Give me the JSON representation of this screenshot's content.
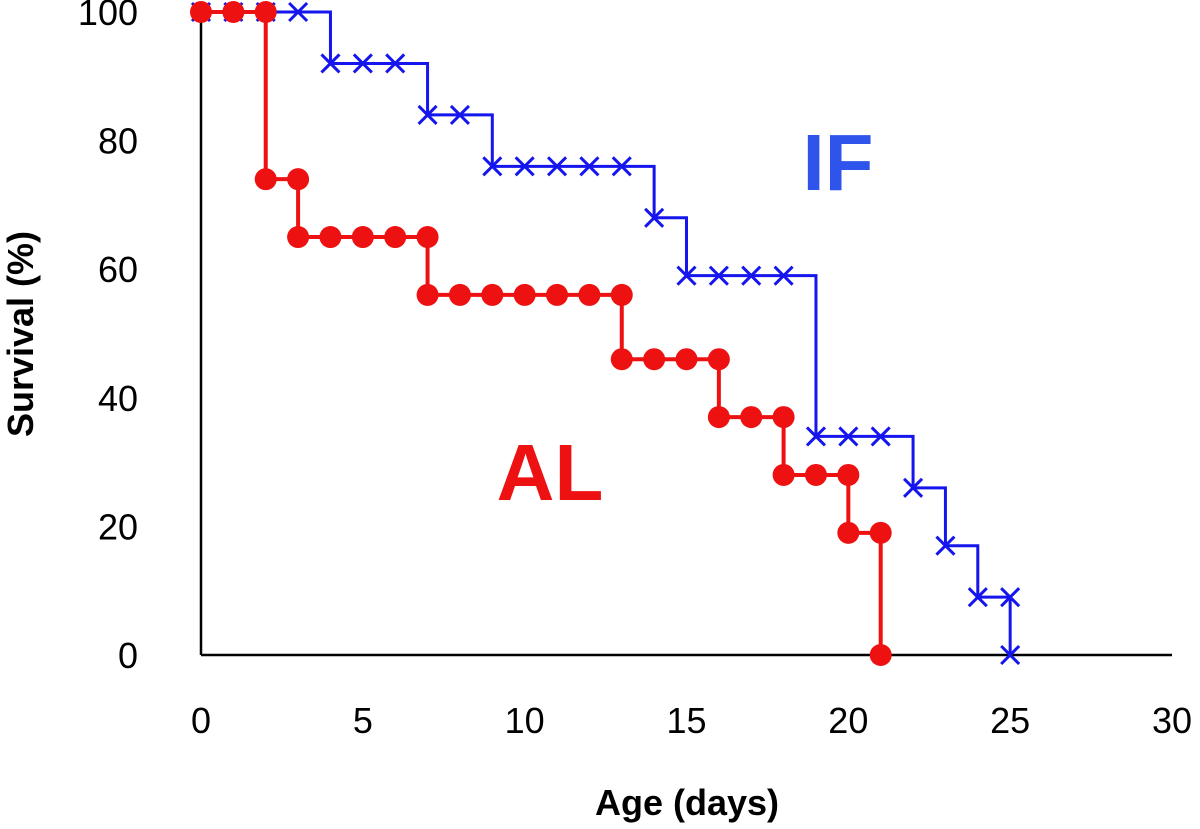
{
  "chart_data": {
    "type": "line",
    "subtype": "step-survival",
    "title": "",
    "xlabel": "Age (days)",
    "ylabel": "Survival (%)",
    "xlim": [
      0,
      30
    ],
    "ylim": [
      0,
      100
    ],
    "xticks": [
      0,
      5,
      10,
      15,
      20,
      25,
      30
    ],
    "yticks": [
      0,
      20,
      40,
      60,
      80,
      100
    ],
    "grid": false,
    "series": [
      {
        "name": "IF",
        "color": "#1515ee",
        "label_color": "#2f54eb",
        "marker": "x",
        "x": [
          0,
          1,
          2,
          3,
          4,
          5,
          6,
          7,
          8,
          9,
          10,
          11,
          12,
          13,
          14,
          15,
          16,
          17,
          18,
          19,
          20,
          21,
          22,
          23,
          24,
          25
        ],
        "y": [
          100,
          100,
          100,
          100,
          92,
          92,
          92,
          84,
          84,
          76,
          76,
          76,
          76,
          76,
          68,
          59,
          59,
          59,
          59,
          34,
          34,
          34,
          26,
          17,
          9,
          9
        ],
        "final_x": 25,
        "final_y": 0
      },
      {
        "name": "AL",
        "color": "#ee1111",
        "label_color": "#ee1111",
        "marker": "o",
        "x": [
          0,
          1,
          2,
          2,
          3,
          3,
          4,
          5,
          6,
          7,
          7,
          8,
          9,
          10,
          11,
          12,
          13,
          13,
          14,
          15,
          16,
          16,
          17,
          18,
          18,
          19,
          20,
          20,
          21,
          21
        ],
        "y": [
          100,
          100,
          100,
          74,
          74,
          65,
          65,
          65,
          65,
          65,
          56,
          56,
          56,
          56,
          56,
          56,
          56,
          46,
          46,
          46,
          46,
          37,
          37,
          37,
          28,
          28,
          28,
          19,
          19,
          0
        ]
      }
    ]
  }
}
